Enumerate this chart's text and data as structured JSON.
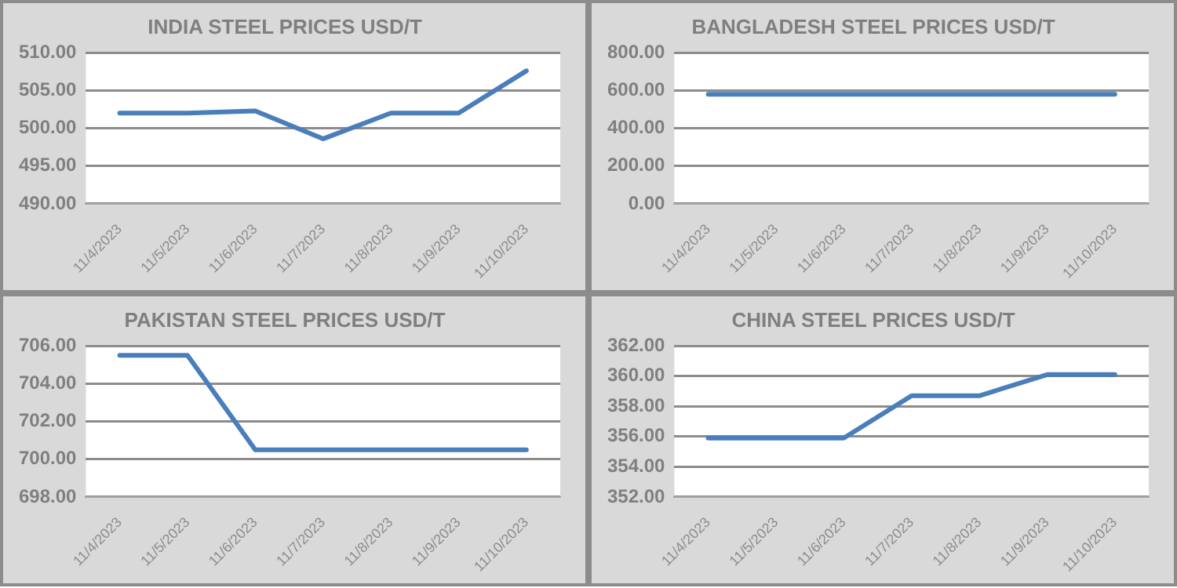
{
  "chart_data": [
    {
      "type": "line",
      "title": "INDIA STEEL PRICES USD/T",
      "categories": [
        "11/4/2023",
        "11/5/2023",
        "11/6/2023",
        "11/7/2023",
        "11/8/2023",
        "11/9/2023",
        "11/10/2023"
      ],
      "series": [
        {
          "color": "#4a7ebb",
          "values": [
            502,
            502,
            502.3,
            498.6,
            502,
            502,
            507.6
          ]
        }
      ],
      "ylim": [
        490,
        510
      ],
      "yticks": [
        {
          "value": 490,
          "label": "490.00"
        },
        {
          "value": 495,
          "label": "495.00"
        },
        {
          "value": 500,
          "label": "500.00"
        },
        {
          "value": 505,
          "label": "505.00"
        },
        {
          "value": 510,
          "label": "510.00"
        }
      ],
      "grid": "y",
      "legend": false,
      "marker": "none"
    },
    {
      "type": "line",
      "title": "BANGLADESH STEEL PRICES USD/T",
      "categories": [
        "11/4/2023",
        "11/5/2023",
        "11/6/2023",
        "11/7/2023",
        "11/8/2023",
        "11/9/2023",
        "11/10/2023"
      ],
      "series": [
        {
          "color": "#4a7ebb",
          "values": [
            580,
            580,
            580,
            580,
            580,
            580,
            580
          ]
        }
      ],
      "ylim": [
        0,
        800
      ],
      "yticks": [
        {
          "value": 0,
          "label": "0.00"
        },
        {
          "value": 200,
          "label": "200.00"
        },
        {
          "value": 400,
          "label": "400.00"
        },
        {
          "value": 600,
          "label": "600.00"
        },
        {
          "value": 800,
          "label": "800.00"
        }
      ],
      "grid": "y",
      "legend": false,
      "marker": "none"
    },
    {
      "type": "line",
      "title": "PAKISTAN STEEL PRICES USD/T",
      "categories": [
        "11/4/2023",
        "11/5/2023",
        "11/6/2023",
        "11/7/2023",
        "11/8/2023",
        "11/9/2023",
        "11/10/2023"
      ],
      "series": [
        {
          "color": "#4a7ebb",
          "values": [
            705.5,
            705.5,
            700.5,
            700.5,
            700.5,
            700.5,
            700.5
          ]
        }
      ],
      "ylim": [
        698,
        706
      ],
      "yticks": [
        {
          "value": 698,
          "label": "698.00"
        },
        {
          "value": 700,
          "label": "700.00"
        },
        {
          "value": 702,
          "label": "702.00"
        },
        {
          "value": 704,
          "label": "704.00"
        },
        {
          "value": 706,
          "label": "706.00"
        }
      ],
      "grid": "y",
      "legend": false,
      "marker": "none"
    },
    {
      "type": "line",
      "title": "CHINA STEEL PRICES USD/T",
      "categories": [
        "11/4/2023",
        "11/5/2023",
        "11/6/2023",
        "11/7/2023",
        "11/8/2023",
        "11/9/2023",
        "11/10/2023"
      ],
      "series": [
        {
          "color": "#4a7ebb",
          "values": [
            355.9,
            355.9,
            355.9,
            358.7,
            358.7,
            360.1,
            360.1
          ]
        }
      ],
      "ylim": [
        352,
        362
      ],
      "yticks": [
        {
          "value": 352,
          "label": "352.00"
        },
        {
          "value": 354,
          "label": "354.00"
        },
        {
          "value": 356,
          "label": "356.00"
        },
        {
          "value": 358,
          "label": "358.00"
        },
        {
          "value": 360,
          "label": "360.00"
        },
        {
          "value": 362,
          "label": "362.00"
        }
      ],
      "grid": "y",
      "legend": false,
      "marker": "none"
    }
  ]
}
